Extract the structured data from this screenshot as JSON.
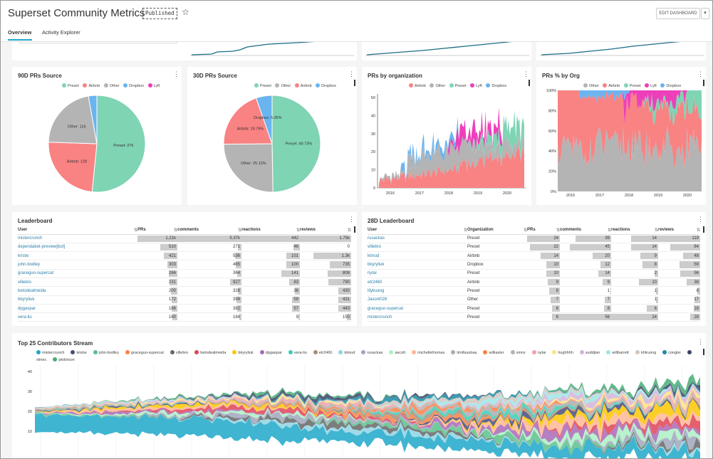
{
  "header": {
    "title": "Superset Community Metrics",
    "status_badge": "Published",
    "star_icon": "star-icon",
    "edit_button": "EDIT DASHBOARD",
    "caret_icon": "chevron-down-icon"
  },
  "tabs": [
    {
      "label": "Overview"
    },
    {
      "label": "Activity Explorer"
    }
  ],
  "colors": {
    "Preset": "#7fd4b4",
    "Airbnb": "#f98283",
    "Other": "#b4b4b4",
    "Dropbox": "#6ab4f0",
    "Lyft": "#ee3fba",
    "accent": "#20a7c9"
  },
  "pie90": {
    "title": "90D PRs Source",
    "legend": [
      "Preset",
      "Airbnb",
      "Other",
      "Dropbox",
      "Lyft"
    ],
    "chart_data": {
      "type": "pie",
      "slices": [
        {
          "name": "Preset",
          "value": 276,
          "label": "Preset: 276"
        },
        {
          "name": "Airbnb",
          "value": 128,
          "label": "Airbnb: 128"
        },
        {
          "name": "Other",
          "value": 116,
          "label": "Other: 116"
        },
        {
          "name": "Dropbox",
          "value": 15,
          "label": ""
        }
      ]
    }
  },
  "pie30": {
    "title": "30D PRs Source",
    "legend": [
      "Preset",
      "Other",
      "Airbnb",
      "Dropbox"
    ],
    "chart_data": {
      "type": "pie",
      "slices": [
        {
          "name": "Preset",
          "value": 49.73,
          "label": "Preset: 49.73%"
        },
        {
          "name": "Other",
          "value": 25.13,
          "label": "Other: 25.13%"
        },
        {
          "name": "Airbnb",
          "value": 19.79,
          "label": "Airbnb: 19.79%"
        },
        {
          "name": "Dropbox",
          "value": 5.35,
          "label": "Dropbox: 5.35%"
        }
      ]
    }
  },
  "prs_org": {
    "title": "PRs by organization",
    "legend": [
      "Airbnb",
      "Other",
      "Preset",
      "Lyft",
      "Dropbox"
    ],
    "chart_data": {
      "type": "area",
      "x_ticks": [
        "2016",
        "2017",
        "2018",
        "2019",
        "2020"
      ],
      "y_ticks": [
        "0",
        "10",
        "20",
        "30",
        "40",
        "50"
      ],
      "ylim": [
        0,
        52
      ]
    }
  },
  "prs_pct": {
    "title": "PRs % by Org",
    "legend": [
      "Other",
      "Airbnb",
      "Preset",
      "Lyft",
      "Dropbox"
    ],
    "chart_data": {
      "type": "area",
      "x_ticks": [
        "2016",
        "2017",
        "2018",
        "2019",
        "2020"
      ],
      "y_ticks": [
        "0%",
        "20%",
        "40%",
        "60%",
        "80%",
        "100%"
      ],
      "ylim": [
        0,
        100
      ]
    }
  },
  "leaderboard": {
    "title": "Leaderboard",
    "columns": [
      "User",
      "PRs",
      "comments",
      "reactions",
      "reviews"
    ],
    "rows": [
      [
        "mistercrunch",
        "1.21k",
        "5.37k",
        "442",
        "1.75k"
      ],
      [
        "dependabot-preview[bot]",
        "510",
        "271",
        "46",
        "0"
      ],
      [
        "kristw",
        "421",
        "536",
        "101",
        "1.3k"
      ],
      [
        "john-bodley",
        "303",
        "465",
        "100",
        "735"
      ],
      [
        "graceguo-supercat",
        "266",
        "364",
        "141",
        "808"
      ],
      [
        "villebro",
        "231",
        "927",
        "83",
        "790"
      ],
      [
        "betodealmeida",
        "200",
        "328",
        "36",
        "430"
      ],
      [
        "bkyryliuk",
        "172",
        "399",
        "59",
        "431"
      ],
      [
        "dpgaspar",
        "166",
        "382",
        "57",
        "443"
      ],
      [
        "vera-liu",
        "160",
        "184",
        "9",
        "150"
      ]
    ],
    "bars": [
      [
        1210,
        5370,
        442,
        1750
      ],
      [
        510,
        271,
        46,
        0
      ],
      [
        421,
        536,
        101,
        1300
      ],
      [
        303,
        465,
        100,
        735
      ],
      [
        266,
        364,
        141,
        808
      ],
      [
        231,
        927,
        83,
        790
      ],
      [
        200,
        328,
        36,
        430
      ],
      [
        172,
        399,
        59,
        431
      ],
      [
        166,
        382,
        57,
        443
      ],
      [
        160,
        184,
        9,
        150
      ]
    ],
    "max": [
      1210,
      5370,
      442,
      1750
    ]
  },
  "leaderboard28": {
    "title": "28D Leaderboard",
    "columns": [
      "User",
      "Organization",
      "PRs",
      "comments",
      "reactions",
      "reviews"
    ],
    "rows": [
      [
        "rusackas",
        "Preset",
        "24",
        "39",
        "14",
        "119"
      ],
      [
        "villebro",
        "Preset",
        "22",
        "45",
        "14",
        "84"
      ],
      [
        "ktmud",
        "Airbnb",
        "14",
        "20",
        "9",
        "48"
      ],
      [
        "bkyryliuk",
        "Dropbox",
        "10",
        "12",
        "8",
        "59"
      ],
      [
        "nytai",
        "Preset",
        "10",
        "14",
        "2",
        "56"
      ],
      [
        "etr2460",
        "Airbnb",
        "9",
        "9",
        "10",
        "38"
      ],
      [
        "lilykuang",
        "Preset",
        "8",
        "1",
        "1",
        "8"
      ],
      [
        "Jasonl028",
        "Other",
        "7",
        "7",
        "1",
        "17"
      ],
      [
        "graceguo-supercat",
        "Preset",
        "6",
        "8",
        "6",
        "18"
      ],
      [
        "mistercrunch",
        "Preset",
        "6",
        "56",
        "24",
        "28"
      ]
    ],
    "max": [
      24,
      56,
      24,
      119
    ]
  },
  "stream": {
    "title": "Top 25 Contributors Stream",
    "legend": [
      [
        "mistercrunch",
        "#1fa8c9"
      ],
      [
        "kristw",
        "#454e7c"
      ],
      [
        "john-bodley",
        "#5ac189"
      ],
      [
        "graceguo-supercat",
        "#ff7f44"
      ],
      [
        "villebro",
        "#666666"
      ],
      [
        "betodealmeida",
        "#e04355"
      ],
      [
        "bkyryliuk",
        "#fcc700"
      ],
      [
        "dpgaspar",
        "#a868b7"
      ],
      [
        "vera-liu",
        "#3cccb4"
      ],
      [
        "etr2460",
        "#a38f79"
      ],
      [
        "ktmud",
        "#8fd3e4"
      ],
      [
        "rusackas",
        "#a1a6bd"
      ],
      [
        "ascott",
        "#acf0c6"
      ],
      [
        "michellethomas",
        "#ffb794"
      ],
      [
        "timifasubaa",
        "#adadad"
      ],
      [
        "williaster",
        "#ff7f44"
      ],
      [
        "xmnx",
        "#b2b2b2"
      ],
      [
        "nytai",
        "#efa1aa"
      ],
      [
        "hughhhh",
        "#fde380"
      ],
      [
        "suddjian",
        "#d3b3da"
      ],
      [
        "willbarrett",
        "#9ee5e5"
      ],
      [
        "khtruong",
        "#d1c6bc"
      ],
      [
        "conglei",
        "#1b8aa5"
      ],
      [
        "xtinec",
        "#3a4265"
      ],
      [
        "pkdotson",
        "#48ae78"
      ]
    ],
    "chart_data": {
      "type": "area",
      "y_ticks": [
        "10",
        "20",
        "30",
        "40"
      ]
    }
  }
}
